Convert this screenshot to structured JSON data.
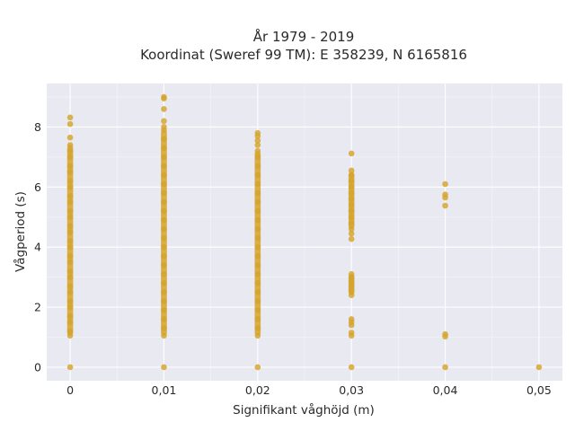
{
  "chart_data": {
    "type": "scatter",
    "title": "År 1979 - 2019",
    "subtitle": "Koordinat (Sweref 99 TM): E 358239, N 6165816",
    "xlabel": "Signifikant våghöjd (m)",
    "ylabel": "Vågperiod (s)",
    "xlim": [
      -0.0025,
      0.0525
    ],
    "ylim": [
      -0.45,
      9.45
    ],
    "x_ticks": [
      {
        "value": 0,
        "label": "0"
      },
      {
        "value": 0.01,
        "label": "0,01"
      },
      {
        "value": 0.02,
        "label": "0,02"
      },
      {
        "value": 0.03,
        "label": "0,03"
      },
      {
        "value": 0.04,
        "label": "0,04"
      },
      {
        "value": 0.05,
        "label": "0,05"
      }
    ],
    "y_ticks": [
      {
        "value": 0,
        "label": "0"
      },
      {
        "value": 2,
        "label": "2"
      },
      {
        "value": 4,
        "label": "4"
      },
      {
        "value": 6,
        "label": "6"
      },
      {
        "value": 8,
        "label": "8"
      }
    ],
    "grid": true,
    "background": "#e9e9f1",
    "gridline_color": "#ffffff",
    "marker_color": "#d4a32a",
    "series": [
      {
        "points_x": 0,
        "solid_ranges": [
          [
            1.05,
            7.4
          ]
        ],
        "points_y": [
          0,
          8.32,
          8.1,
          7.65,
          7.4,
          7.2,
          7.0,
          6.7,
          6.5,
          6.2,
          6.0,
          5.7,
          5.5,
          5.2,
          5.0,
          4.7,
          4.5,
          4.2,
          4.0,
          3.7,
          3.5,
          3.2,
          3.0,
          2.7,
          2.5,
          2.2,
          2.0,
          1.7,
          1.5,
          1.2,
          1.05
        ]
      },
      {
        "points_x": 0.01,
        "solid_ranges": [
          [
            1.05,
            7.9
          ]
        ],
        "points_y": [
          0,
          9.0,
          8.95,
          8.6,
          8.2,
          8.0,
          7.9,
          7.6,
          7.3,
          7.0,
          6.7,
          6.4,
          6.1,
          5.8,
          5.5,
          5.2,
          4.9,
          4.6,
          4.3,
          4.0,
          3.7,
          3.4,
          3.1,
          2.8,
          2.5,
          2.2,
          1.9,
          1.6,
          1.3,
          1.05
        ]
      },
      {
        "points_x": 0.02,
        "solid_ranges": [
          [
            1.05,
            7.2
          ]
        ],
        "points_y": [
          0,
          7.8,
          7.7,
          7.55,
          7.4,
          7.2,
          7.0,
          6.7,
          6.4,
          6.1,
          5.8,
          5.5,
          5.2,
          4.9,
          4.6,
          4.3,
          4.0,
          3.7,
          3.4,
          3.1,
          2.8,
          2.5,
          2.2,
          1.9,
          1.6,
          1.3,
          1.05
        ]
      },
      {
        "points_x": 0.03,
        "solid_ranges": [
          [
            4.6,
            6.5
          ],
          [
            2.4,
            3.1
          ]
        ],
        "points_y": [
          0,
          7.12,
          6.55,
          6.4,
          6.2,
          6.0,
          5.8,
          5.6,
          5.4,
          5.2,
          5.0,
          4.8,
          4.6,
          4.45,
          4.27,
          3.1,
          3.0,
          2.85,
          2.7,
          2.55,
          2.4,
          1.6,
          1.5,
          1.4,
          1.15,
          1.05
        ]
      },
      {
        "points_x": 0.04,
        "points_y": [
          0,
          6.1,
          5.75,
          5.65,
          5.38,
          1.1,
          1.02
        ]
      },
      {
        "points_x": 0.05,
        "points_y": [
          0
        ]
      }
    ]
  }
}
